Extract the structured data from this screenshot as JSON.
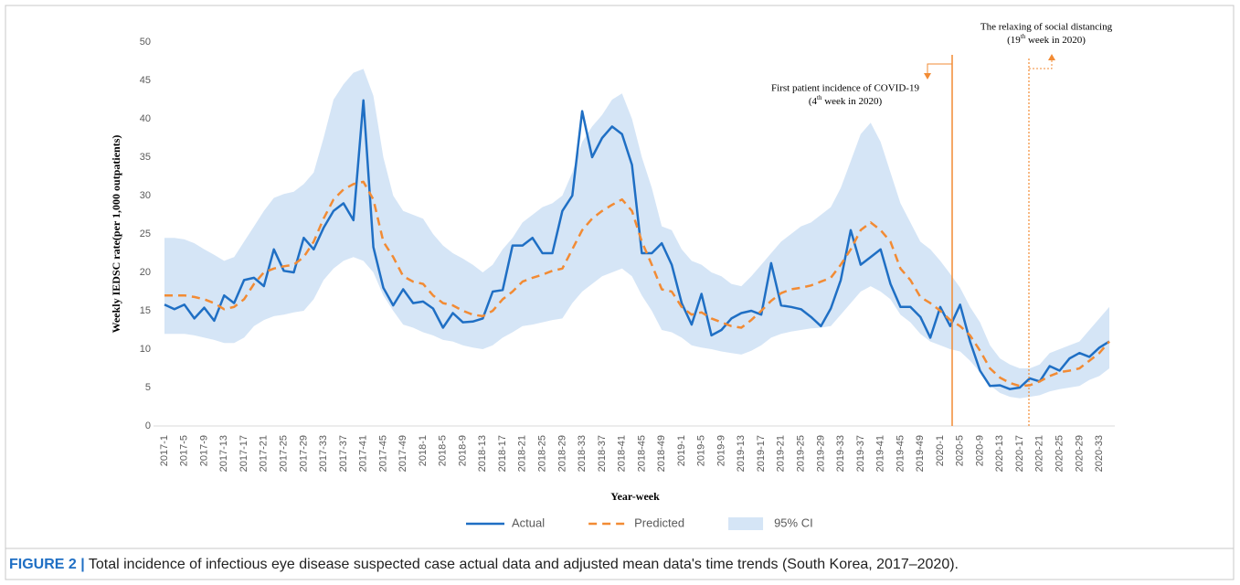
{
  "chart_data": {
    "type": "line",
    "y_label": "Weekly IEDSC rate(per 1,000 outpatients)",
    "x_label": "Year-week",
    "ylim": [
      0,
      50
    ],
    "yticks": [
      0,
      5,
      10,
      15,
      20,
      25,
      30,
      35,
      40,
      45,
      50
    ],
    "grid": false,
    "legend": "bottom",
    "categories": [
      "2017-1",
      null,
      "2017-5",
      null,
      "2017-9",
      null,
      "2017-13",
      null,
      "2017-17",
      null,
      "2017-21",
      null,
      "2017-25",
      null,
      "2017-29",
      null,
      "2017-33",
      null,
      "2017-37",
      null,
      "2017-41",
      null,
      "2017-45",
      null,
      "2017-49",
      null,
      "2018-1",
      null,
      "2018-5",
      null,
      "2018-9",
      null,
      "2018-13",
      null,
      "2018-17",
      null,
      "2018-21",
      null,
      "2018-25",
      null,
      "2018-29",
      null,
      "2018-33",
      null,
      "2018-37",
      null,
      "2018-41",
      null,
      "2018-45",
      null,
      "2018-49",
      null,
      "2019-1",
      null,
      "2019-5",
      null,
      "2019-9",
      null,
      "2019-13",
      null,
      "2019-17",
      null,
      "2019-21",
      null,
      "2019-25",
      null,
      "2019-29",
      null,
      "2019-33",
      null,
      "2019-37",
      null,
      "2019-41",
      null,
      "2019-45",
      null,
      "2019-49",
      null,
      "2020-1",
      null,
      "2020-5",
      null,
      "2020-9",
      null,
      "2020-13",
      null,
      "2020-17",
      null,
      "2020-21",
      null,
      "2020-25",
      null,
      "2020-29",
      null,
      "2020-33",
      null
    ],
    "series": [
      {
        "name": "Actual",
        "color": "#1f6fc4",
        "style": "solid",
        "values": [
          15.8,
          15.2,
          15.8,
          14,
          15.4,
          13.7,
          17,
          16,
          19,
          19.3,
          18.2,
          23,
          20.2,
          20,
          24.5,
          23,
          25.8,
          28,
          29,
          26.8,
          42.4,
          23.3,
          18,
          15.7,
          17.8,
          16,
          16.2,
          15.3,
          12.8,
          14.7,
          13.5,
          13.6,
          14,
          17.5,
          17.7,
          23.5,
          23.5,
          24.5,
          22.5,
          22.5,
          28,
          30,
          41,
          35,
          37.5,
          39,
          38,
          34,
          22.5,
          22.5,
          23.8,
          21,
          16,
          13.2,
          17.2,
          11.8,
          12.5,
          14,
          14.7,
          15,
          14.5,
          21.2,
          15.7,
          15.5,
          15.2,
          14.2,
          13,
          15.3,
          19,
          25.5,
          21,
          22,
          23,
          18.5,
          15.5,
          15.5,
          14.2,
          11.5,
          15.5,
          13,
          15.8,
          11,
          7.2,
          5.2,
          5.3,
          4.8,
          5,
          6.2,
          5.8,
          7.8,
          7.2,
          8.8,
          9.5,
          9,
          10.2,
          11
        ]
      },
      {
        "name": "Predicted",
        "color": "#f28b34",
        "style": "dashed",
        "values": [
          17,
          17,
          17,
          16.8,
          16.5,
          16,
          15.2,
          15.5,
          16.5,
          18.5,
          20,
          20.5,
          20.8,
          21,
          22,
          24,
          27,
          29.5,
          30.8,
          31.5,
          31.8,
          29.5,
          24,
          22,
          19.5,
          18.8,
          18.5,
          17,
          16,
          15.7,
          15,
          14.5,
          14.3,
          15,
          16.5,
          17.5,
          18.8,
          19.3,
          19.7,
          20.2,
          20.5,
          23,
          25.5,
          27,
          28,
          28.8,
          29.5,
          28,
          24,
          21,
          17.8,
          17.5,
          15.5,
          14.5,
          14.8,
          14,
          13.5,
          13,
          12.8,
          13.8,
          15,
          16.3,
          17.3,
          17.8,
          18,
          18.3,
          18.8,
          19.3,
          21,
          23,
          25.5,
          26.5,
          25.5,
          24,
          20.5,
          19,
          16.8,
          16,
          15,
          13.8,
          13,
          11.8,
          9.8,
          7.5,
          6.3,
          5.6,
          5.2,
          5.3,
          5.8,
          6.5,
          7,
          7.2,
          7.5,
          8.5,
          9.5,
          11
        ]
      },
      {
        "name": "95% CI",
        "color": "#d5e5f6",
        "style": "band",
        "lower": [
          12,
          12,
          12,
          11.8,
          11.5,
          11.2,
          10.8,
          10.8,
          11.5,
          13,
          13.8,
          14.3,
          14.5,
          14.8,
          15,
          16.5,
          19,
          20.5,
          21.5,
          22,
          21.5,
          20,
          17,
          15,
          13.2,
          12.8,
          12.2,
          11.8,
          11.2,
          11,
          10.5,
          10.2,
          10,
          10.5,
          11.5,
          12.2,
          13,
          13.2,
          13.5,
          13.8,
          14,
          16,
          17.5,
          18.5,
          19.5,
          20,
          20.5,
          19.5,
          17,
          15,
          12.5,
          12.2,
          11.5,
          10.5,
          10.2,
          10,
          9.7,
          9.5,
          9.3,
          9.8,
          10.5,
          11.5,
          12,
          12.3,
          12.5,
          12.7,
          12.8,
          13,
          14.5,
          16,
          17.5,
          18.2,
          17.5,
          16.5,
          14.5,
          13.5,
          12,
          11,
          10.5,
          10,
          9.7,
          8.5,
          7,
          5.3,
          4.3,
          3.8,
          3.6,
          3.8,
          4,
          4.5,
          4.8,
          5,
          5.2,
          6,
          6.5,
          7.5
        ],
        "upper": [
          24.5,
          24.5,
          24.3,
          23.8,
          23,
          22.3,
          21.5,
          22,
          24,
          26,
          28,
          29.7,
          30.2,
          30.5,
          31.5,
          33,
          37.5,
          42.5,
          44.5,
          46,
          46.5,
          43,
          35,
          30,
          28,
          27.5,
          27,
          25,
          23.5,
          22.5,
          21.8,
          21,
          20,
          21,
          23,
          24.5,
          26.5,
          27.5,
          28.5,
          29,
          30,
          33,
          37,
          39,
          40.5,
          42.5,
          43.3,
          40,
          35,
          31,
          26,
          25.5,
          23,
          21.5,
          21,
          20,
          19.5,
          18.5,
          18.2,
          19.5,
          21,
          22.5,
          24,
          25,
          26,
          26.5,
          27.5,
          28.5,
          31,
          34.5,
          38,
          39.5,
          37,
          33,
          29,
          26.5,
          24,
          23,
          21.5,
          19.8,
          18,
          15.5,
          13.5,
          10.5,
          8.8,
          8,
          7.5,
          7.5,
          8,
          9.5,
          10,
          10.5,
          11,
          12.5,
          14,
          15.5
        ]
      }
    ],
    "annotations": [
      {
        "label": "First patient incidence of COVID-19",
        "sublabel_parts": [
          "(4",
          "th",
          " week in 2020)"
        ]
      },
      {
        "label": "The relaxing of social distancing",
        "sublabel_parts": [
          "(19",
          "th",
          " week in  2020)"
        ]
      }
    ]
  },
  "caption": {
    "label": "FIGURE 2 |",
    "text": " Total incidence of infectious eye disease suspected case actual data and adjusted mean data's time trends (South Korea, 2017–2020)."
  }
}
